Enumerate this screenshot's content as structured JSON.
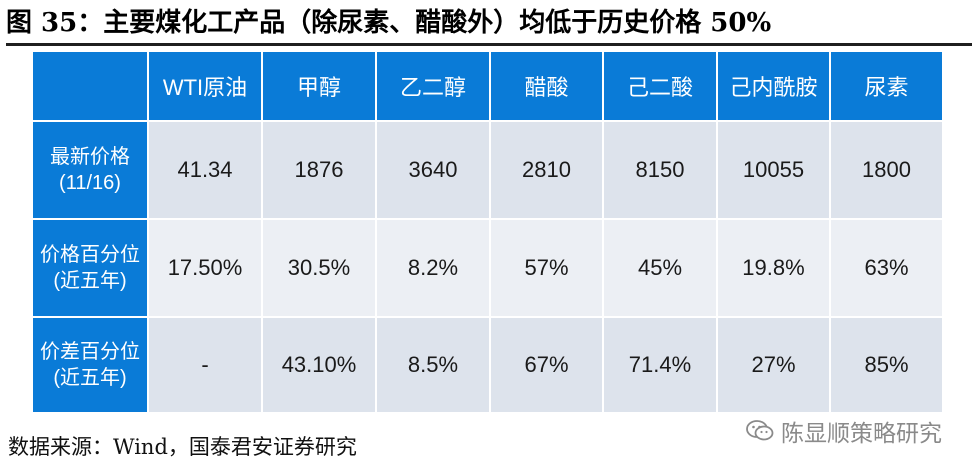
{
  "title": "图 35：主要煤化工产品（除尿素、醋酸外）均低于历史价格 50%",
  "table": {
    "columns": [
      "",
      "WTI原油",
      "甲醇",
      "乙二醇",
      "醋酸",
      "己二酸",
      "己内酰胺",
      "尿素"
    ],
    "rows": [
      {
        "label_line1": "最新价格",
        "label_line2": "(11/16)",
        "values": [
          "41.34",
          "1876",
          "3640",
          "2810",
          "8150",
          "10055",
          "1800"
        ]
      },
      {
        "label_line1": "价格百分位",
        "label_line2": "(近五年)",
        "values": [
          "17.50%",
          "30.5%",
          "8.2%",
          "57%",
          "45%",
          "19.8%",
          "63%"
        ]
      },
      {
        "label_line1": "价差百分位",
        "label_line2": "(近五年)",
        "values": [
          "-",
          "43.10%",
          "8.5%",
          "67%",
          "71.4%",
          "27%",
          "85%"
        ]
      }
    ]
  },
  "source": "数据来源：Wind，国泰君安证券研究",
  "watermark": "陈显顺策略研究",
  "colors": {
    "header_blue": "#0a7bd7",
    "row_light": "#dde3ec",
    "row_dark": "#cdd4e0"
  }
}
